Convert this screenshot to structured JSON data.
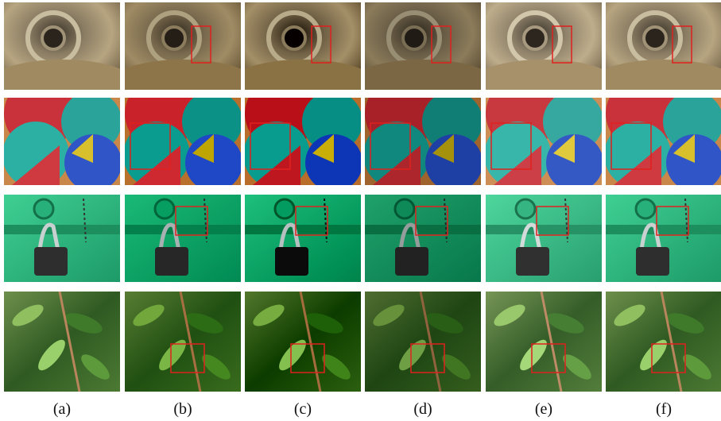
{
  "labels": [
    "(a)",
    "(b)",
    "(c)",
    "(d)",
    "(e)",
    "(f)"
  ]
}
